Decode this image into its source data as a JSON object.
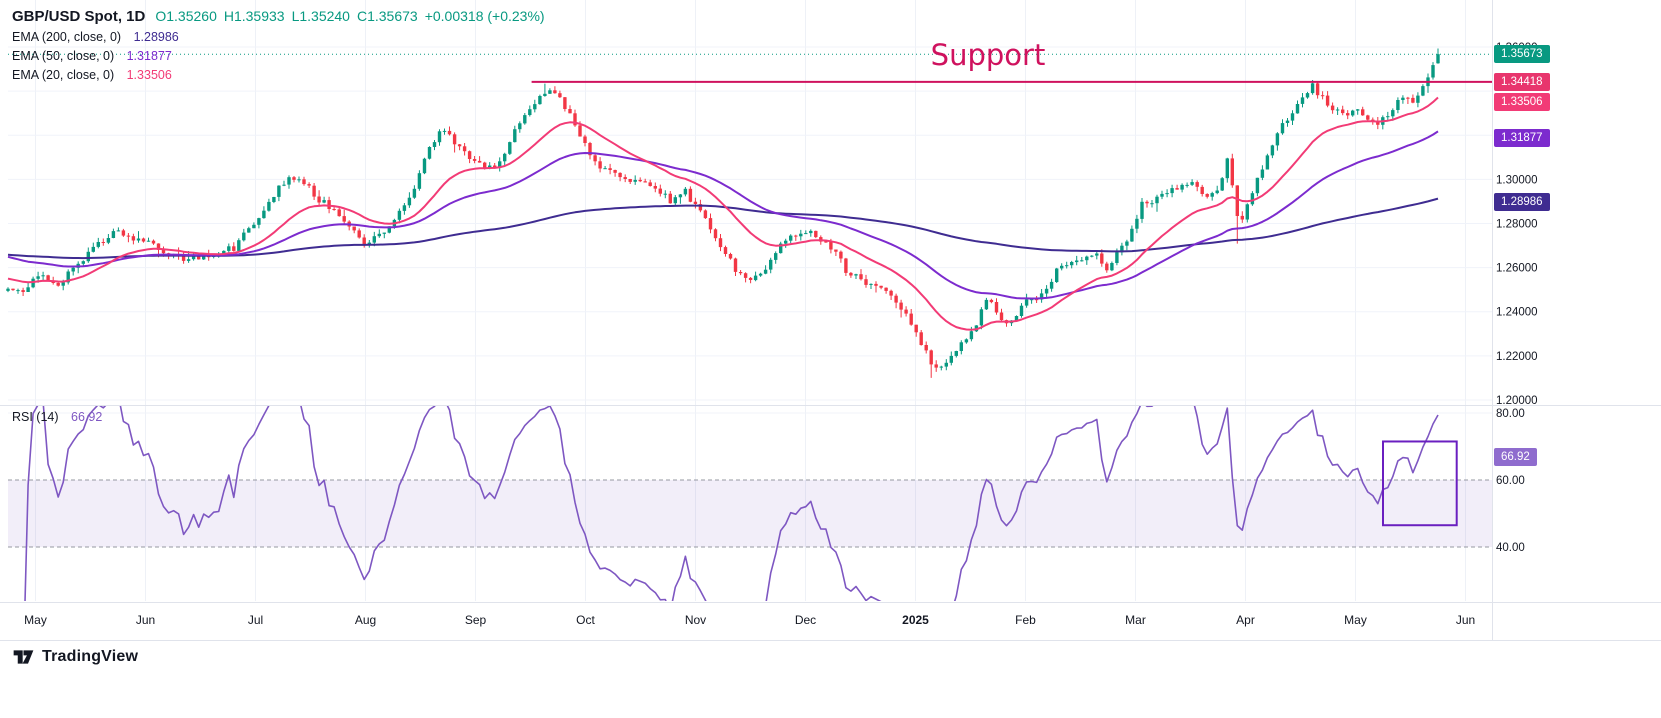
{
  "header": {
    "symbol": "GBP/USD Spot, 1D",
    "ohlc": {
      "open_label": "O1.35260",
      "high_label": "H1.35933",
      "low_label": "L1.35240",
      "close_label": "C1.35673",
      "change_label": "+0.00318 (+0.23%)"
    },
    "indicators": [
      {
        "label": "EMA (200, close, 0)",
        "value": "1.28986",
        "color": "#3f2c91"
      },
      {
        "label": "EMA (50, close, 0)",
        "value": "1.31877",
        "color": "#7c2bce"
      },
      {
        "label": "EMA (20, close, 0)",
        "value": "1.33506",
        "color": "#f23b76"
      }
    ],
    "rsi_label": "RSI (14)",
    "rsi_value": "66.92"
  },
  "annotation": {
    "support_label": "Support"
  },
  "watermark": {
    "brand": "TradingView"
  },
  "axis": {
    "price_ticks": [
      {
        "label": "1.36000",
        "value": 1.36
      },
      {
        "label": "1.30000",
        "value": 1.3
      },
      {
        "label": "1.28000",
        "value": 1.28
      },
      {
        "label": "1.26000",
        "value": 1.26
      },
      {
        "label": "1.24000",
        "value": 1.24
      },
      {
        "label": "1.22000",
        "value": 1.22
      },
      {
        "label": "1.20000",
        "value": 1.2
      }
    ],
    "price_gridlines": [
      1.2,
      1.22,
      1.24,
      1.26,
      1.28,
      1.3,
      1.32,
      1.34,
      1.36
    ],
    "rsi_ticks": [
      {
        "label": "80.00",
        "value": 80
      },
      {
        "label": "60.00",
        "value": 60
      },
      {
        "label": "40.00",
        "value": 40
      }
    ],
    "months": [
      {
        "label": "May"
      },
      {
        "label": "Jun"
      },
      {
        "label": "Jul"
      },
      {
        "label": "Aug"
      },
      {
        "label": "Sep"
      },
      {
        "label": "Oct"
      },
      {
        "label": "Nov"
      },
      {
        "label": "Dec"
      },
      {
        "label": "2025",
        "bold": true
      },
      {
        "label": "Feb"
      },
      {
        "label": "Mar"
      },
      {
        "label": "Apr"
      },
      {
        "label": "May"
      },
      {
        "label": "Jun"
      }
    ],
    "badges": [
      {
        "id": "last-price",
        "label": "1.35673",
        "value": 1.35673,
        "bg": "#089981",
        "pane": "price"
      },
      {
        "id": "support-level",
        "label": "1.34418",
        "value": 1.34418,
        "bg": "#e8356d",
        "pane": "price"
      },
      {
        "id": "ema-20",
        "label": "1.33506",
        "value": 1.33506,
        "bg": "#f23b76",
        "pane": "price"
      },
      {
        "id": "ema-50",
        "label": "1.31877",
        "value": 1.31877,
        "bg": "#7c2bce",
        "pane": "price"
      },
      {
        "id": "ema-200",
        "label": "1.28986",
        "value": 1.28986,
        "bg": "#3f2c91",
        "pane": "price"
      },
      {
        "id": "rsi",
        "label": "66.92",
        "value": 66.92,
        "bg": "#8f6cce",
        "pane": "rsi"
      }
    ]
  },
  "chart_data": [
    {
      "type": "candlestick",
      "name": "GBP/USD Spot",
      "timeframe": "1D",
      "x_range_months": [
        "May 2024",
        "Jun 2025"
      ],
      "ylim": [
        1.195,
        1.375
      ],
      "up_color": "#089981",
      "down_color": "#f23645",
      "last_candle": {
        "open": 1.3526,
        "high": 1.35933,
        "low": 1.3524,
        "close": 1.35673
      },
      "change": "+0.00318 (+0.23%)",
      "support_line": {
        "price": 1.34418,
        "start_month": 4.76,
        "color": "#cf125e"
      },
      "last_price_line": {
        "price": 1.35673,
        "color": "#089981"
      },
      "close_path_anchors": [
        [
          0.0,
          1.2515
        ],
        [
          0.12,
          1.2478
        ],
        [
          0.3,
          1.2572
        ],
        [
          0.46,
          1.2524
        ],
        [
          0.62,
          1.2612
        ],
        [
          0.8,
          1.2702
        ],
        [
          1.0,
          1.2768
        ],
        [
          1.15,
          1.2738
        ],
        [
          1.35,
          1.2692
        ],
        [
          1.6,
          1.2636
        ],
        [
          1.85,
          1.2648
        ],
        [
          2.05,
          1.2692
        ],
        [
          2.3,
          1.2832
        ],
        [
          2.52,
          1.3002
        ],
        [
          2.64,
          1.3008
        ],
        [
          2.82,
          1.2908
        ],
        [
          3.0,
          1.2852
        ],
        [
          3.12,
          1.2772
        ],
        [
          3.26,
          1.2694
        ],
        [
          3.46,
          1.2788
        ],
        [
          3.66,
          1.2932
        ],
        [
          3.84,
          1.3152
        ],
        [
          3.96,
          1.3238
        ],
        [
          4.1,
          1.3136
        ],
        [
          4.26,
          1.3076
        ],
        [
          4.42,
          1.3046
        ],
        [
          4.58,
          1.3192
        ],
        [
          4.76,
          1.3322
        ],
        [
          4.9,
          1.3418
        ],
        [
          5.02,
          1.3372
        ],
        [
          5.16,
          1.3244
        ],
        [
          5.34,
          1.3072
        ],
        [
          5.52,
          1.3036
        ],
        [
          5.72,
          1.2986
        ],
        [
          5.88,
          1.2964
        ],
        [
          6.02,
          1.2902
        ],
        [
          6.13,
          1.2958
        ],
        [
          6.28,
          1.2868
        ],
        [
          6.46,
          1.2698
        ],
        [
          6.62,
          1.2588
        ],
        [
          6.73,
          1.2532
        ],
        [
          6.86,
          1.2582
        ],
        [
          7.0,
          1.2682
        ],
        [
          7.16,
          1.2748
        ],
        [
          7.33,
          1.2756
        ],
        [
          7.5,
          1.2682
        ],
        [
          7.63,
          1.2576
        ],
        [
          7.8,
          1.2526
        ],
        [
          7.95,
          1.2514
        ],
        [
          8.1,
          1.2422
        ],
        [
          8.26,
          1.2312
        ],
        [
          8.41,
          1.2138
        ],
        [
          8.52,
          1.2178
        ],
        [
          8.64,
          1.2246
        ],
        [
          8.78,
          1.2332
        ],
        [
          8.9,
          1.2446
        ],
        [
          9.01,
          1.2392
        ],
        [
          9.11,
          1.2336
        ],
        [
          9.26,
          1.2442
        ],
        [
          9.41,
          1.2472
        ],
        [
          9.56,
          1.2602
        ],
        [
          9.72,
          1.2626
        ],
        [
          9.88,
          1.2666
        ],
        [
          10.0,
          1.2598
        ],
        [
          10.16,
          1.2722
        ],
        [
          10.31,
          1.2882
        ],
        [
          10.51,
          1.2936
        ],
        [
          10.72,
          1.2992
        ],
        [
          10.88,
          1.2932
        ],
        [
          11.0,
          1.2948
        ],
        [
          11.09,
          1.3088
        ],
        [
          11.19,
          1.2772
        ],
        [
          11.33,
          1.2976
        ],
        [
          11.51,
          1.3182
        ],
        [
          11.69,
          1.3322
        ],
        [
          11.86,
          1.3422
        ],
        [
          12.0,
          1.3332
        ],
        [
          12.13,
          1.3292
        ],
        [
          12.28,
          1.3312
        ],
        [
          12.41,
          1.3246
        ],
        [
          12.55,
          1.3302
        ],
        [
          12.68,
          1.3382
        ],
        [
          12.8,
          1.3348
        ],
        [
          12.91,
          1.3482
        ],
        [
          13.0,
          1.35673
        ]
      ],
      "wick_events": [
        {
          "month": 4.9,
          "high": 1.3434
        },
        {
          "month": 8.41,
          "low": 1.21
        },
        {
          "month": 11.19,
          "low": 1.2709
        },
        {
          "month": 13.0,
          "high": 1.35933
        }
      ],
      "emas": [
        {
          "period": 200,
          "final_value": 1.28986,
          "color": "#3f2c91",
          "seed": 1.266
        },
        {
          "period": 50,
          "final_value": 1.31877,
          "color": "#7c2bce",
          "seed": 1.2655
        },
        {
          "period": 20,
          "final_value": 1.33506,
          "color": "#f23b76",
          "seed": 1.2555
        }
      ]
    },
    {
      "type": "line",
      "name": "RSI (14)",
      "period": 14,
      "last_value": 66.92,
      "ylim": [
        23,
        83
      ],
      "color": "#7e57c2",
      "band": {
        "from": 40,
        "to": 60,
        "fill": "rgba(126,87,194,0.10)"
      },
      "dashed_levels": [
        60,
        40
      ],
      "gridline_levels": [
        80
      ],
      "highlight_box": {
        "start_month": 12.5,
        "end_month": 13.17,
        "top": 71.5,
        "bottom": 46.5,
        "color": "#6a1fc0"
      }
    }
  ]
}
